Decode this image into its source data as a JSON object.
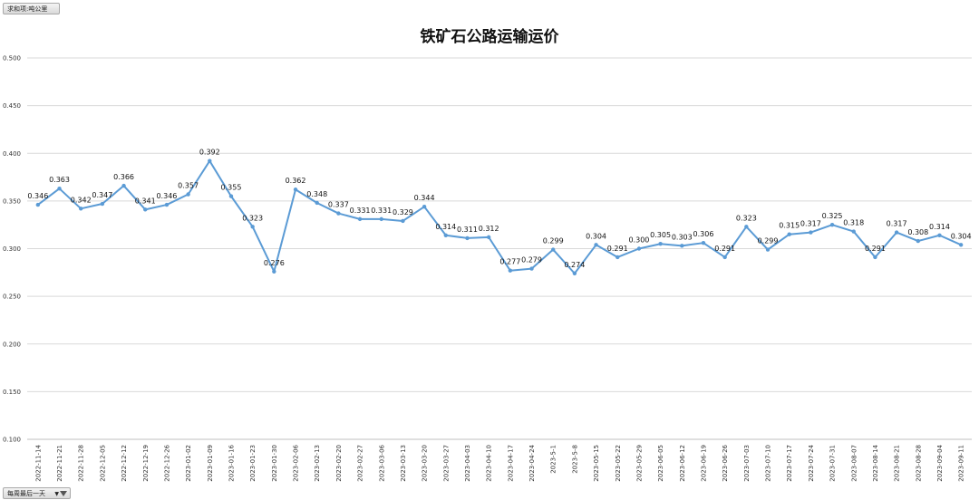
{
  "header": {
    "unit_button": "求和项:吨公里"
  },
  "footer": {
    "filter_button": "每周最后一天"
  },
  "chart_data": {
    "type": "line",
    "title": "铁矿石公路运输运价",
    "xlabel": "",
    "ylabel": "",
    "ylim": [
      0.1,
      0.5
    ],
    "yticks": [
      "0.100",
      "0.150",
      "0.200",
      "0.250",
      "0.300",
      "0.350",
      "0.400",
      "0.450",
      "0.500"
    ],
    "grid": true,
    "legend": "none",
    "line_color": "#5b9bd5",
    "categories": [
      "2022-11-14",
      "2022-11-21",
      "2022-11-28",
      "2022-12-05",
      "2022-12-12",
      "2022-12-19",
      "2022-12-26",
      "2023-01-02",
      "2023-01-09",
      "2023-01-16",
      "2023-01-23",
      "2023-01-30",
      "2023-02-06",
      "2023-02-13",
      "2023-02-20",
      "2023-02-27",
      "2023-03-06",
      "2023-03-13",
      "2023-03-20",
      "2023-03-27",
      "2023-04-03",
      "2023-04-10",
      "2023-04-17",
      "2023-04-24",
      "2023-5-1",
      "2023-5-8",
      "2023-05-15",
      "2023-05-22",
      "2023-05-29",
      "2023-06-05",
      "2023-06-12",
      "2023-06-19",
      "2023-06-26",
      "2023-07-03",
      "2023-07-10",
      "2023-07-17",
      "2023-07-24",
      "2023-07-31",
      "2023-08-07",
      "2023-08-14",
      "2023-08-21",
      "2023-08-28",
      "2023-09-04",
      "2023-09-11"
    ],
    "values": [
      0.346,
      0.363,
      0.342,
      0.347,
      0.366,
      0.341,
      0.346,
      0.357,
      0.392,
      0.355,
      0.323,
      0.276,
      0.362,
      0.348,
      0.337,
      0.331,
      0.331,
      0.329,
      0.344,
      0.314,
      0.311,
      0.312,
      0.277,
      0.279,
      0.299,
      0.274,
      0.304,
      0.291,
      0.3,
      0.305,
      0.303,
      0.306,
      0.291,
      0.323,
      0.299,
      0.315,
      0.317,
      0.325,
      0.318,
      0.291,
      0.317,
      0.308,
      0.314,
      0.304
    ],
    "labels": [
      "0.346",
      "0.363",
      "0.342",
      "0.347",
      "0.366",
      "0.341",
      "0.346",
      "0.357",
      "0.392",
      "0.355",
      "0.323",
      "0.276",
      "0.362",
      "0.348",
      "0.337",
      "0.331",
      "0.331",
      "0.329",
      "0.344",
      "0.314",
      "0.311",
      "0.312",
      "0.277",
      "0.279",
      "0.299",
      "0.274",
      "0.304",
      "0.291",
      "0.300",
      "0.305",
      "0.303",
      "0.306",
      "0.291",
      "0.323",
      "0.299",
      "0.315",
      "0.317",
      "0.325",
      "0.318",
      "0.291",
      "0.317",
      "0.308",
      "0.314",
      "0.304"
    ]
  }
}
